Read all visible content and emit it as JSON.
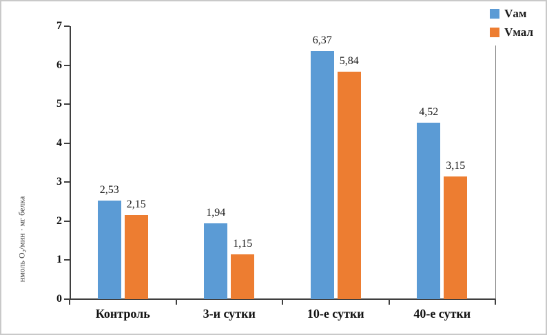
{
  "chart_data": {
    "type": "bar",
    "title": "",
    "categories": [
      "Контроль",
      "3-и сутки",
      "10-е сутки",
      "40-е сутки"
    ],
    "series": [
      {
        "name": "Vам",
        "color": "#5b9bd5",
        "values": [
          2.53,
          1.94,
          6.37,
          4.52
        ],
        "labels": [
          "2,53",
          "1,94",
          "6,37",
          "4,52"
        ]
      },
      {
        "name": "Vмал",
        "color": "#ed7d31",
        "values": [
          2.15,
          1.15,
          5.84,
          3.15
        ],
        "labels": [
          "2,15",
          "1,15",
          "5,84",
          "3,15"
        ]
      }
    ],
    "xlabel": "",
    "ylabel": "нмоль О₂/мин · мг белка",
    "ylim": [
      0,
      7
    ],
    "yticks": [
      0,
      1,
      2,
      3,
      4,
      5,
      6,
      7
    ],
    "grid": false,
    "legend_position": "top-right"
  }
}
